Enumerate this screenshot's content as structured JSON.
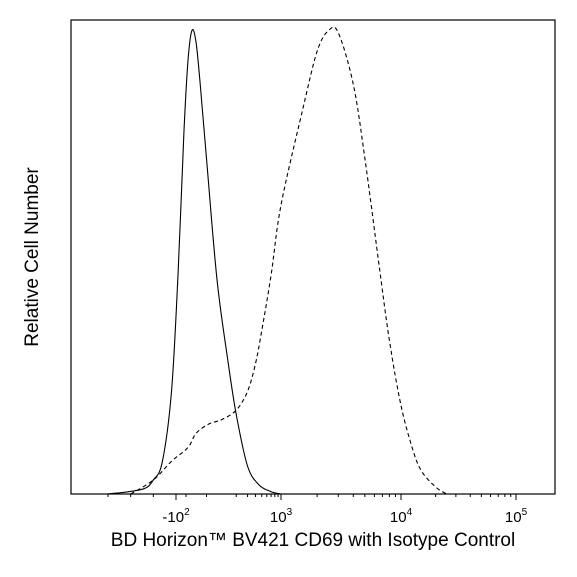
{
  "chart_data": {
    "type": "line",
    "xlabel": "BD Horizon™ BV421 CD69 with Isotype Control",
    "ylabel": "Relative Cell Number",
    "x_scale": "biexponential (log with negative region)",
    "x_ticks": [
      {
        "base": "-10",
        "exp": "2",
        "value": -100
      },
      {
        "base": "10",
        "exp": "3",
        "value": 1000
      },
      {
        "base": "10",
        "exp": "4",
        "value": 10000
      },
      {
        "base": "10",
        "exp": "5",
        "value": 100000
      }
    ],
    "y_ticks": "none",
    "grid": false,
    "legend": "none",
    "series": [
      {
        "line_style": "solid",
        "color": "#000000",
        "points": [
          [
            -400,
            0.0
          ],
          [
            -250,
            0.01
          ],
          [
            -200,
            0.03
          ],
          [
            -160,
            0.07
          ],
          [
            -120,
            0.22
          ],
          [
            -90,
            0.47
          ],
          [
            -60,
            0.78
          ],
          [
            -40,
            0.93
          ],
          [
            -20,
            0.995
          ],
          [
            0,
            0.97
          ],
          [
            20,
            0.88
          ],
          [
            50,
            0.72
          ],
          [
            100,
            0.46
          ],
          [
            150,
            0.28
          ],
          [
            200,
            0.17
          ],
          [
            300,
            0.06
          ],
          [
            450,
            0.02
          ],
          [
            700,
            0.005
          ],
          [
            1000,
            0.0
          ]
        ]
      },
      {
        "line_style": "dashed",
        "color": "#000000",
        "points": [
          [
            -300,
            0.0
          ],
          [
            -200,
            0.03
          ],
          [
            -120,
            0.07
          ],
          [
            -40,
            0.1
          ],
          [
            0,
            0.13
          ],
          [
            60,
            0.15
          ],
          [
            120,
            0.16
          ],
          [
            200,
            0.18
          ],
          [
            300,
            0.22
          ],
          [
            400,
            0.28
          ],
          [
            500,
            0.35
          ],
          [
            700,
            0.47
          ],
          [
            1000,
            0.62
          ],
          [
            1500,
            0.82
          ],
          [
            2000,
            0.95
          ],
          [
            2500,
            0.995
          ],
          [
            3000,
            0.99
          ],
          [
            4000,
            0.88
          ],
          [
            5000,
            0.72
          ],
          [
            6500,
            0.5
          ],
          [
            8000,
            0.33
          ],
          [
            10000,
            0.19
          ],
          [
            12500,
            0.1
          ],
          [
            15000,
            0.05
          ],
          [
            20000,
            0.015
          ],
          [
            25000,
            0.0
          ]
        ]
      }
    ]
  }
}
